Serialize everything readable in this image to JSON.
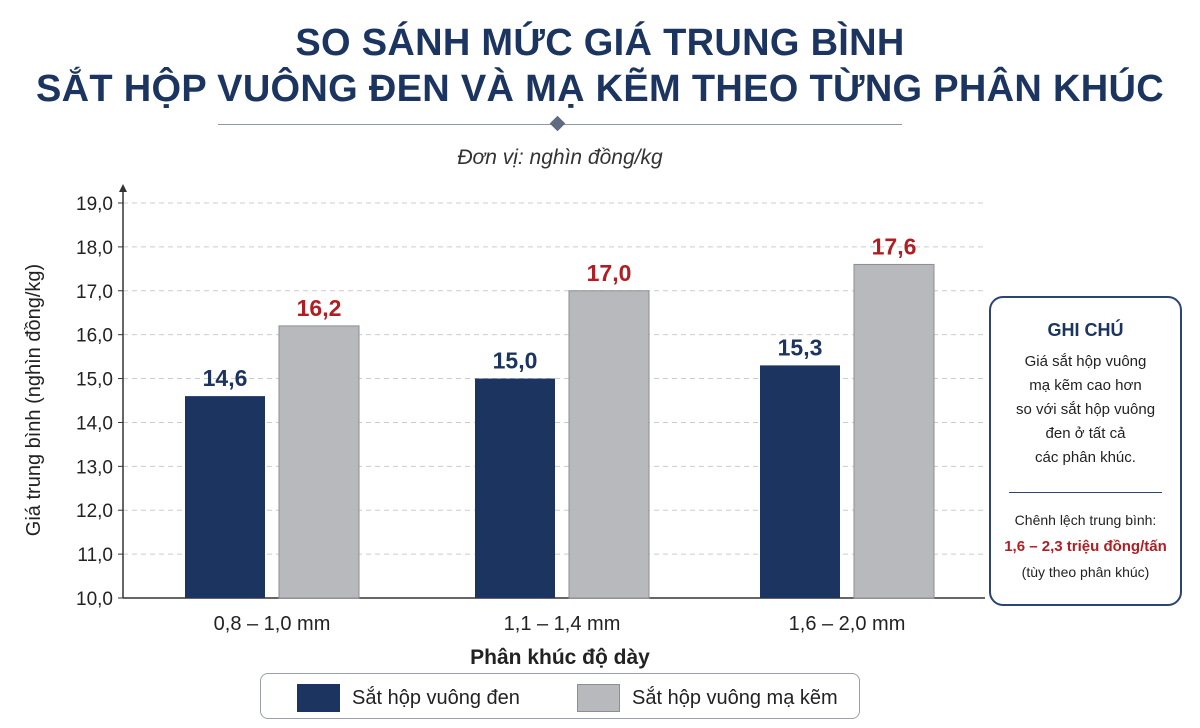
{
  "title": {
    "line1": "SO SÁNH MỨC GIÁ TRUNG BÌNH",
    "line2": "SẮT HỘP VUÔNG ĐEN VÀ MẠ KẼM THEO TỪNG PHÂN KHÚC"
  },
  "unit_label": "Đơn vị: nghìn đồng/kg",
  "colors": {
    "series_black": "#1b3560",
    "series_galv": "#b8b9bc",
    "label_black": "#1b3560",
    "label_galv": "#b01e23"
  },
  "chart_data": {
    "type": "bar",
    "categories": [
      "0,8 – 1,0 mm",
      "1,1 – 1,4 mm",
      "1,6 – 2,0 mm"
    ],
    "series": [
      {
        "name": "Sắt hộp vuông đen",
        "values": [
          14.6,
          15.0,
          15.3
        ],
        "labels": [
          "14,6",
          "15,0",
          "15,3"
        ]
      },
      {
        "name": "Sắt hộp vuông mạ kẽm",
        "values": [
          16.2,
          17.0,
          17.6
        ],
        "labels": [
          "16,2",
          "17,0",
          "17,6"
        ]
      }
    ],
    "ylabel": "Giá trung bình (nghìn đồng/kg)",
    "xlabel": "Phân khúc độ dày",
    "ylim": [
      10,
      19
    ],
    "yticks": [
      "10,0",
      "11,0",
      "12,0",
      "13,0",
      "14,0",
      "15,0",
      "16,0",
      "17,0",
      "18,0",
      "19,0"
    ],
    "grid": true,
    "legend_position": "bottom"
  },
  "note": {
    "title": "GHI CHÚ",
    "body_lines": [
      "Giá sắt hộp vuông",
      "mạ kẽm cao hơn",
      "so với sắt hộp vuông",
      "đen ở tất cả",
      "các phân khúc."
    ],
    "diff_label": "Chênh lệch trung bình:",
    "diff_value": "1,6 – 2,3 triệu đồng/tấn",
    "diff_sub": "(tùy theo phân khúc)"
  }
}
